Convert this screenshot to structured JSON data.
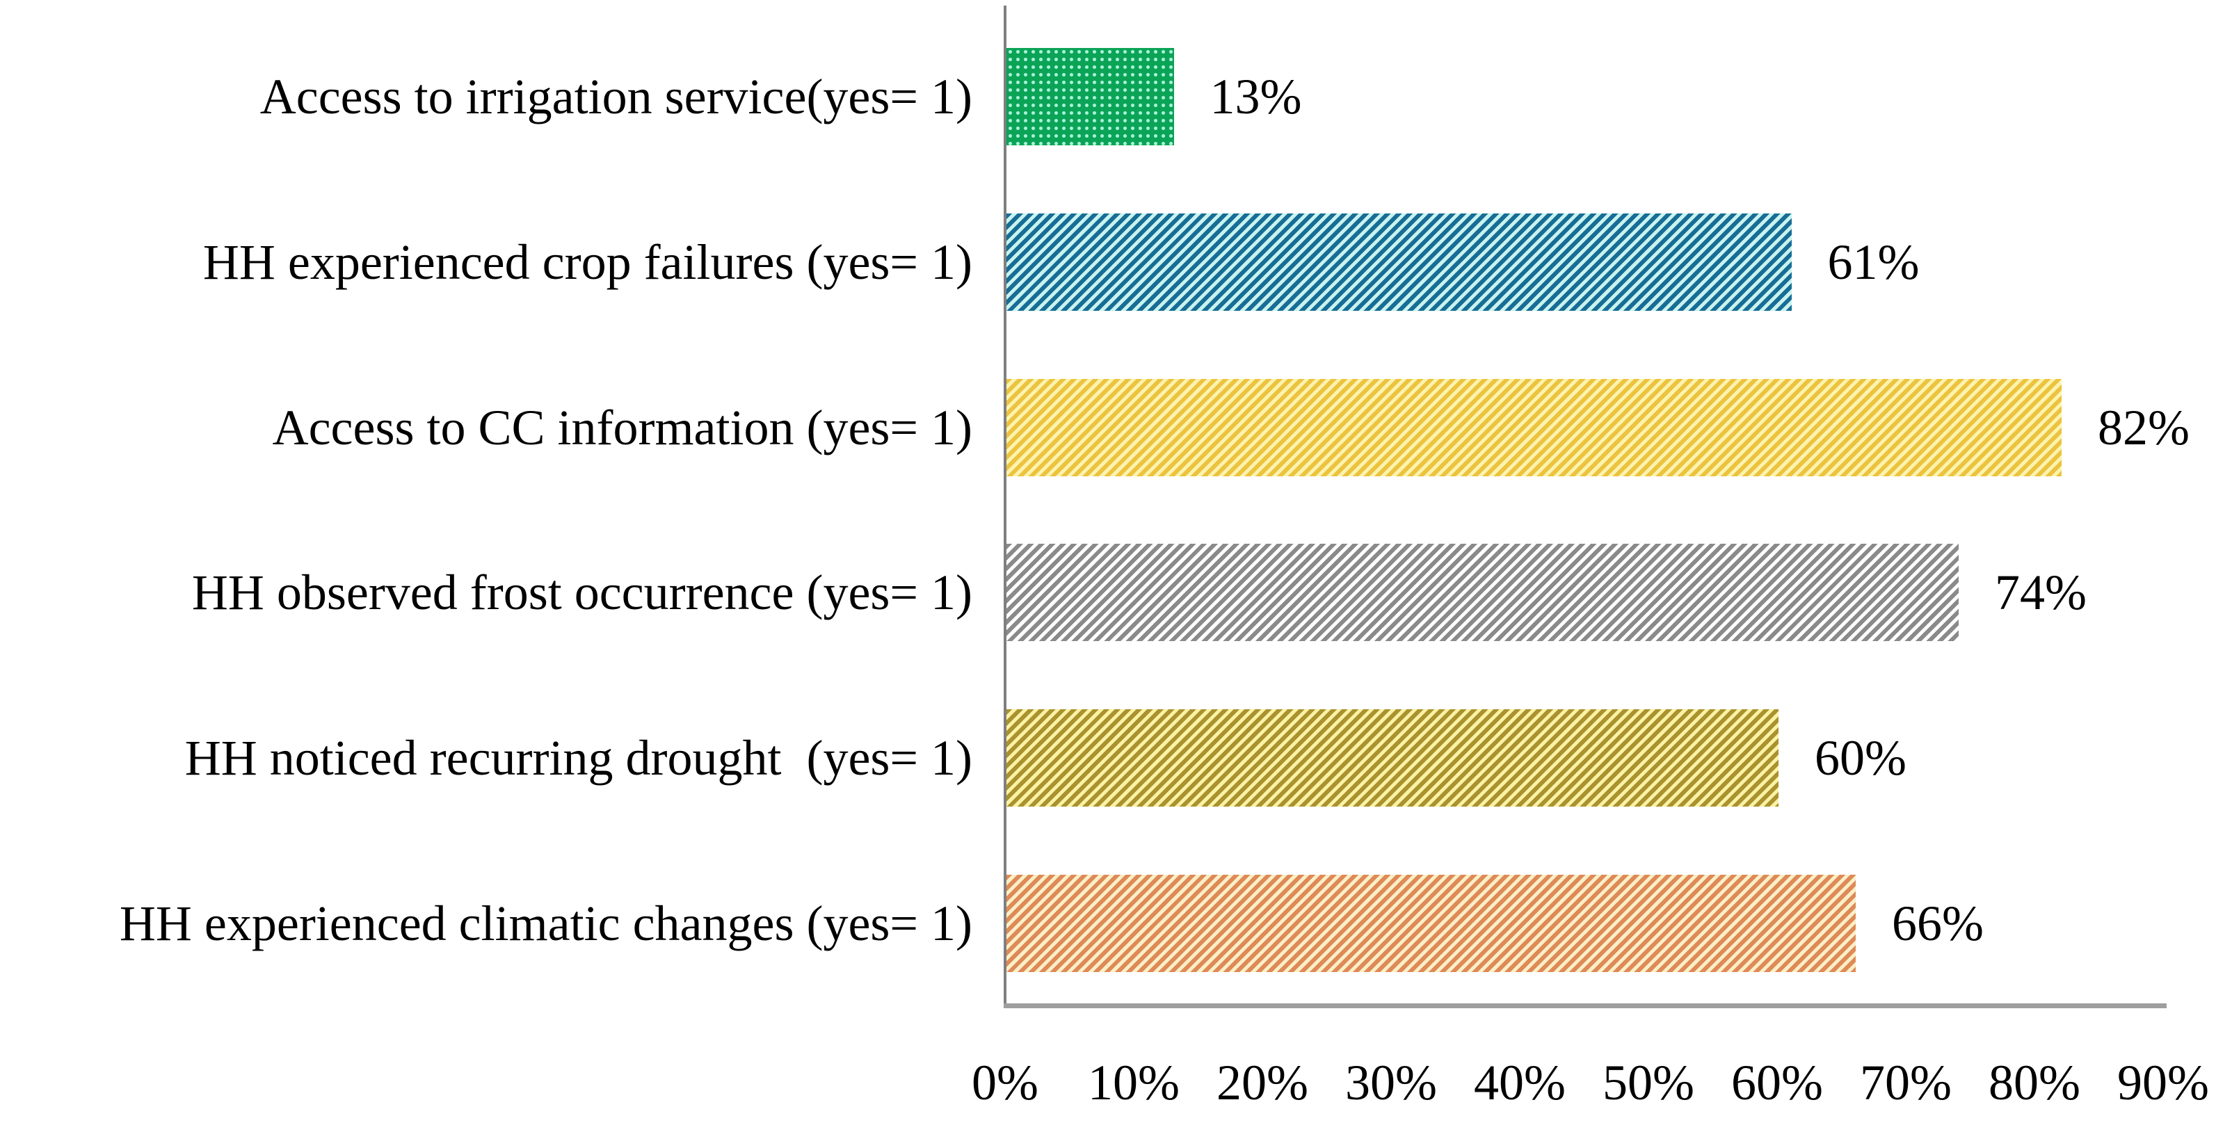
{
  "chart_data": {
    "type": "bar",
    "orientation": "horizontal",
    "title": "",
    "xlabel": "",
    "ylabel": "",
    "grid": false,
    "legend": false,
    "xlim": [
      0,
      90
    ],
    "x_ticks": [
      "0%",
      "10%",
      "20%",
      "30%",
      "40%",
      "50%",
      "60%",
      "70%",
      "80%",
      "90%"
    ],
    "x_tick_values": [
      0,
      10,
      20,
      30,
      40,
      50,
      60,
      70,
      80,
      90
    ],
    "categories": [
      "Access to irrigation service(yes= 1)",
      "HH experienced crop failures (yes= 1)",
      "Access to CC information (yes= 1)",
      "HH observed frost occurrence (yes= 1)",
      "HH noticed recurring drought  (yes= 1)",
      "HH experienced climatic changes (yes= 1)"
    ],
    "values": [
      13,
      61,
      82,
      74,
      60,
      66
    ],
    "value_labels": [
      "13%",
      "61%",
      "82%",
      "74%",
      "60%",
      "66%"
    ],
    "bar_styles": [
      {
        "pattern": "dots",
        "name": "green-dotted",
        "fg": "#0BA457",
        "bg": "#A9F2D8"
      },
      {
        "pattern": "stripes",
        "name": "blue-striped",
        "fg": "#176D96",
        "bg": "#C9F3EF"
      },
      {
        "pattern": "stripes",
        "name": "yellow-striped",
        "fg": "#ECC33F",
        "bg": "#FDF3AE"
      },
      {
        "pattern": "stripes",
        "name": "gray-striped",
        "fg": "#8A8A8A",
        "bg": "#FFFFFF"
      },
      {
        "pattern": "stripes",
        "name": "olive-striped",
        "fg": "#A9922F",
        "bg": "#FBF2A4"
      },
      {
        "pattern": "stripes",
        "name": "orange-striped",
        "fg": "#DE8A58",
        "bg": "#FBEFC6"
      }
    ],
    "axis_color": "#9e9e9e",
    "text_color": "#000000"
  }
}
